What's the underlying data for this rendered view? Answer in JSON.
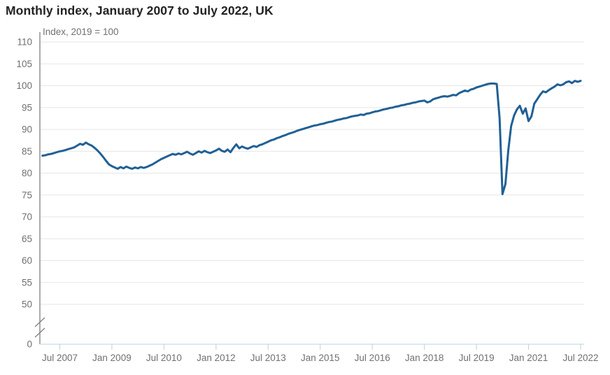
{
  "colors": {
    "line": "#206095",
    "grid": "#e6e6e6",
    "y_axis": "#595959",
    "x_axis": "#bdd2e2",
    "axis_break": "#808080",
    "tick_text": "#707071",
    "title_text": "#222222"
  },
  "chart_data": {
    "type": "line",
    "title": "Monthly index, January 2007 to July 2022, UK",
    "subtitle": "Index, 2019 = 100",
    "frequency": "monthly",
    "x_start": "2007-01",
    "x_end": "2022-07",
    "x_tick_labels": [
      "Jul 2007",
      "Jan 2009",
      "Jul 2010",
      "Jan 2012",
      "Jul 2013",
      "Jan 2015",
      "Jul 2016",
      "Jan 2018",
      "Jul 2019",
      "Jan 2021",
      "Jul 2022"
    ],
    "y_ticks": [
      0,
      50,
      55,
      60,
      65,
      70,
      75,
      80,
      85,
      90,
      95,
      100,
      105,
      110
    ],
    "y_axis_break": true,
    "ylim_display": [
      50,
      110
    ],
    "grid": "horizontal",
    "legend": "none",
    "series": [
      {
        "color": "#206095",
        "values": [
          84.0,
          84.1,
          84.3,
          84.4,
          84.6,
          84.8,
          85.0,
          85.1,
          85.3,
          85.5,
          85.7,
          85.9,
          86.3,
          86.7,
          86.5,
          87.0,
          86.6,
          86.3,
          85.8,
          85.2,
          84.5,
          83.7,
          82.8,
          82.0,
          81.6,
          81.3,
          81.0,
          81.4,
          81.1,
          81.5,
          81.2,
          81.0,
          81.3,
          81.1,
          81.4,
          81.2,
          81.4,
          81.7,
          82.0,
          82.4,
          82.8,
          83.2,
          83.5,
          83.8,
          84.1,
          84.4,
          84.2,
          84.5,
          84.3,
          84.6,
          84.9,
          84.5,
          84.2,
          84.6,
          85.0,
          84.7,
          85.1,
          84.8,
          84.6,
          84.9,
          85.2,
          85.6,
          85.1,
          84.9,
          85.4,
          84.8,
          85.8,
          86.6,
          85.7,
          86.1,
          85.8,
          85.6,
          85.9,
          86.2,
          86.0,
          86.4,
          86.6,
          86.9,
          87.2,
          87.5,
          87.7,
          88.0,
          88.2,
          88.5,
          88.7,
          89.0,
          89.2,
          89.4,
          89.7,
          89.9,
          90.1,
          90.3,
          90.5,
          90.7,
          90.9,
          91.0,
          91.2,
          91.3,
          91.5,
          91.7,
          91.8,
          92.0,
          92.2,
          92.3,
          92.5,
          92.6,
          92.8,
          93.0,
          93.1,
          93.2,
          93.4,
          93.3,
          93.6,
          93.7,
          93.9,
          94.1,
          94.2,
          94.4,
          94.6,
          94.7,
          94.9,
          95.0,
          95.2,
          95.3,
          95.5,
          95.6,
          95.8,
          95.9,
          96.1,
          96.2,
          96.4,
          96.5,
          96.6,
          96.2,
          96.4,
          96.9,
          97.1,
          97.3,
          97.5,
          97.6,
          97.5,
          97.7,
          97.9,
          97.8,
          98.3,
          98.6,
          98.9,
          98.7,
          99.1,
          99.3,
          99.6,
          99.8,
          100.0,
          100.2,
          100.4,
          100.5,
          100.5,
          100.4,
          92.5,
          75.2,
          77.5,
          85.2,
          90.8,
          93.2,
          94.6,
          95.4,
          93.6,
          94.8,
          91.9,
          93.0,
          95.9,
          96.9,
          97.9,
          98.7,
          98.5,
          99.0,
          99.4,
          99.8,
          100.3,
          100.1,
          100.3,
          100.8,
          101.0,
          100.6,
          101.1,
          100.9,
          101.1
        ]
      }
    ]
  }
}
